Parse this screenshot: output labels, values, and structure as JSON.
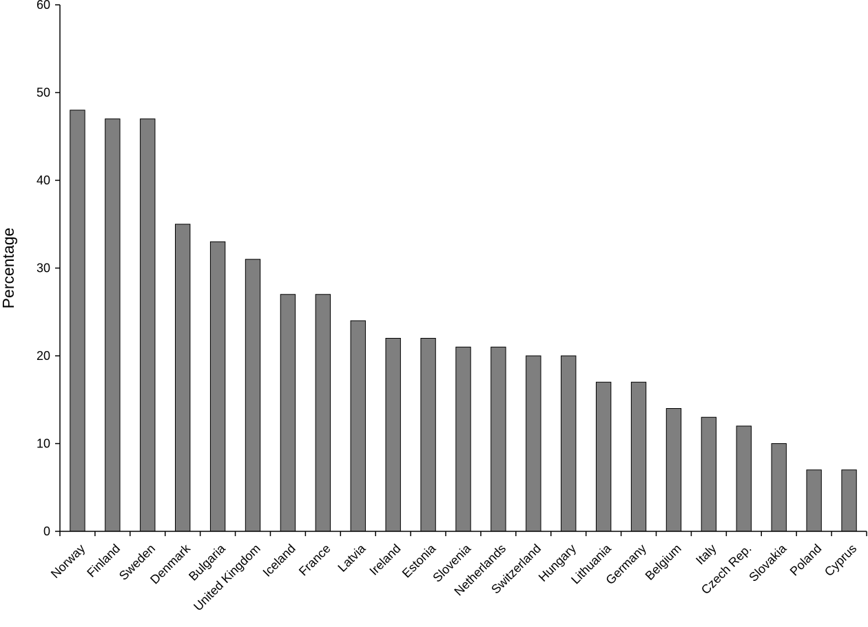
{
  "chart_data": {
    "type": "bar",
    "title": "",
    "xlabel": "",
    "ylabel": "Percentage",
    "ylim": [
      0,
      60
    ],
    "yticks": [
      0,
      10,
      20,
      30,
      40,
      50,
      60
    ],
    "grid": false,
    "legend": "none",
    "bar_color": "#7f7f7f",
    "categories": [
      "Norway",
      "Finland",
      "Sweden",
      "Denmark",
      "Bulgaria",
      "United Kingdom",
      "Iceland",
      "France",
      "Latvia",
      "Ireland",
      "Estonia",
      "Slovenia",
      "Netherlands",
      "Switzerland",
      "Hungary",
      "Lithuania",
      "Germany",
      "Belgium",
      "Italy",
      "Czech Rep.",
      "Slovakia",
      "Poland",
      "Cyprus"
    ],
    "values": [
      48,
      47,
      47,
      35,
      33,
      31,
      27,
      27,
      24,
      22,
      22,
      21,
      21,
      20,
      20,
      17,
      17,
      14,
      13,
      12,
      10,
      7,
      7
    ]
  }
}
